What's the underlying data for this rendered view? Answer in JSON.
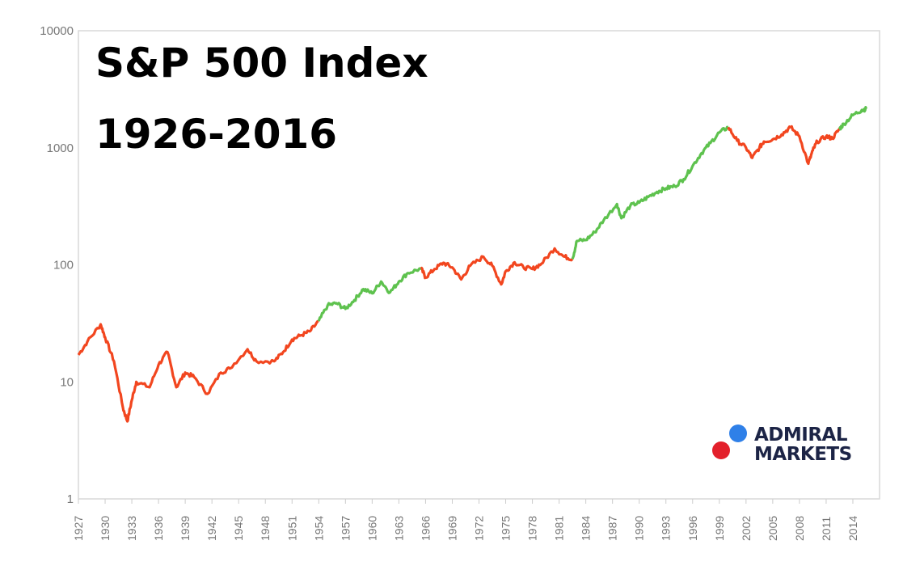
{
  "chart_data": {
    "type": "line",
    "title": "S&P 500 Index",
    "subtitle": "1926-2016",
    "xlabel": "",
    "ylabel": "",
    "yscale": "log",
    "ylim": [
      1,
      10000
    ],
    "xlim": [
      1927,
      2017
    ],
    "yticks": [
      "1",
      "10",
      "100",
      "1000",
      "10000"
    ],
    "xticks": [
      "1927",
      "1930",
      "1933",
      "1936",
      "1939",
      "1942",
      "1945",
      "1948",
      "1951",
      "1954",
      "1957",
      "1960",
      "1963",
      "1966",
      "1969",
      "1972",
      "1975",
      "1978",
      "1981",
      "1984",
      "1987",
      "1990",
      "1993",
      "1996",
      "1999",
      "2002",
      "2005",
      "2008",
      "2011",
      "2014"
    ],
    "grid": false,
    "colors": {
      "bear": "#f2461f",
      "bull": "#5ec24e",
      "axis": "#d9d9d9"
    },
    "series": [
      {
        "name": "bear-1927-1954",
        "color_key": "bear",
        "points": [
          [
            1927,
            17
          ],
          [
            1928,
            22
          ],
          [
            1929.5,
            31
          ],
          [
            1930,
            24
          ],
          [
            1931,
            15
          ],
          [
            1932,
            6
          ],
          [
            1932.5,
            4.6
          ],
          [
            1933,
            7
          ],
          [
            1933.5,
            10
          ],
          [
            1935,
            9
          ],
          [
            1936,
            14
          ],
          [
            1937,
            18
          ],
          [
            1938,
            9
          ],
          [
            1939,
            12
          ],
          [
            1940,
            11
          ],
          [
            1941.5,
            7.9
          ],
          [
            1943,
            12
          ],
          [
            1944,
            13
          ],
          [
            1946,
            19
          ],
          [
            1947,
            15
          ],
          [
            1949,
            15
          ],
          [
            1950,
            18
          ],
          [
            1951,
            23
          ],
          [
            1952,
            25
          ],
          [
            1953,
            27
          ],
          [
            1954,
            33
          ]
        ]
      },
      {
        "name": "bull-1954-1966",
        "color_key": "bull",
        "points": [
          [
            1954,
            33
          ],
          [
            1955,
            45
          ],
          [
            1956,
            47
          ],
          [
            1957,
            42
          ],
          [
            1958,
            50
          ],
          [
            1959,
            62
          ],
          [
            1960,
            57
          ],
          [
            1961,
            72
          ],
          [
            1962,
            58
          ],
          [
            1963,
            72
          ],
          [
            1964,
            85
          ],
          [
            1965.5,
            93
          ]
        ]
      },
      {
        "name": "bear-1966-1982",
        "color_key": "bear",
        "points": [
          [
            1965.5,
            93
          ],
          [
            1966,
            78
          ],
          [
            1967,
            92
          ],
          [
            1968,
            104
          ],
          [
            1969,
            95
          ],
          [
            1970,
            75
          ],
          [
            1971,
            98
          ],
          [
            1972.5,
            117
          ],
          [
            1973.5,
            98
          ],
          [
            1974.5,
            68
          ],
          [
            1975,
            88
          ],
          [
            1976,
            105
          ],
          [
            1977,
            95
          ],
          [
            1978,
            92
          ],
          [
            1979,
            102
          ],
          [
            1980.5,
            138
          ],
          [
            1981.5,
            118
          ],
          [
            1982.5,
            112
          ]
        ]
      },
      {
        "name": "bull-1982-2000",
        "color_key": "bull",
        "points": [
          [
            1982.5,
            112
          ],
          [
            1983,
            160
          ],
          [
            1984,
            163
          ],
          [
            1985,
            190
          ],
          [
            1986,
            240
          ],
          [
            1987.5,
            330
          ],
          [
            1988,
            250
          ],
          [
            1989,
            320
          ],
          [
            1990,
            340
          ],
          [
            1991,
            380
          ],
          [
            1992,
            420
          ],
          [
            1993,
            450
          ],
          [
            1994,
            470
          ],
          [
            1995,
            540
          ],
          [
            1996,
            700
          ],
          [
            1997,
            900
          ],
          [
            1998,
            1100
          ],
          [
            1999,
            1350
          ],
          [
            2000,
            1500
          ]
        ]
      },
      {
        "name": "bear-2000-2012",
        "color_key": "bear",
        "points": [
          [
            2000,
            1500
          ],
          [
            2001,
            1150
          ],
          [
            2002,
            1000
          ],
          [
            2002.7,
            820
          ],
          [
            2003.5,
            1000
          ],
          [
            2004,
            1130
          ],
          [
            2005,
            1180
          ],
          [
            2006,
            1300
          ],
          [
            2007,
            1500
          ],
          [
            2008,
            1250
          ],
          [
            2009,
            730
          ],
          [
            2009.5,
            950
          ],
          [
            2010,
            1130
          ],
          [
            2011,
            1250
          ],
          [
            2011.7,
            1200
          ],
          [
            2012.5,
            1450
          ]
        ]
      },
      {
        "name": "bull-2012-2015",
        "color_key": "bull",
        "points": [
          [
            2012.5,
            1450
          ],
          [
            2013,
            1600
          ],
          [
            2014,
            1900
          ],
          [
            2015,
            2100
          ],
          [
            2015.5,
            2150
          ]
        ]
      }
    ]
  },
  "logo": {
    "line1": "ADMIRAL",
    "line2": "MARKETS"
  }
}
